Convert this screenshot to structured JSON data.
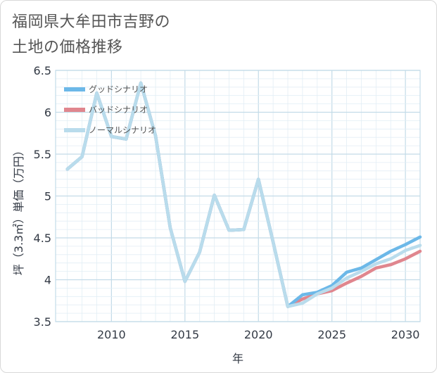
{
  "title": {
    "line1": "福岡県大牟田市吉野の",
    "line2": "土地の価格推移"
  },
  "chart_data": {
    "type": "line",
    "xlabel": "年",
    "ylabel": "坪（3.3㎡）単価（万円）",
    "xlim": [
      2006.2,
      2031
    ],
    "ylim": [
      3.5,
      6.5
    ],
    "x_ticks": [
      2010,
      2015,
      2020,
      2025,
      2030
    ],
    "y_ticks": [
      3.5,
      4,
      4.5,
      5,
      5.5,
      6,
      6.5
    ],
    "x_tick_labels": [
      "2010",
      "2015",
      "2020",
      "2025",
      "2030"
    ],
    "y_tick_labels": [
      "3.5",
      "4",
      "4.5",
      "5",
      "5.5",
      "6",
      "6.5"
    ],
    "grid": true,
    "legend_position": "top-left",
    "series": [
      {
        "name": "グッドシナリオ",
        "color": "#6cb8e8",
        "x": [
          2007,
          2008,
          2009,
          2010,
          2011,
          2012,
          2013,
          2014,
          2015,
          2016,
          2017,
          2018,
          2019,
          2020,
          2021,
          2022,
          2023,
          2024,
          2025,
          2026,
          2027,
          2028,
          2029,
          2030,
          2031
        ],
        "values": [
          5.32,
          5.47,
          6.23,
          5.71,
          5.68,
          6.35,
          5.72,
          4.62,
          3.98,
          4.33,
          5.01,
          4.59,
          4.6,
          5.2,
          4.45,
          3.68,
          3.82,
          3.85,
          3.93,
          4.09,
          4.14,
          4.24,
          4.34,
          4.42,
          4.51
        ]
      },
      {
        "name": "バッドシナリオ",
        "color": "#e0868e",
        "x": [
          2007,
          2008,
          2009,
          2010,
          2011,
          2012,
          2013,
          2014,
          2015,
          2016,
          2017,
          2018,
          2019,
          2020,
          2021,
          2022,
          2023,
          2024,
          2025,
          2026,
          2027,
          2028,
          2029,
          2030,
          2031
        ],
        "values": [
          5.32,
          5.47,
          6.23,
          5.71,
          5.68,
          6.35,
          5.72,
          4.62,
          3.98,
          4.33,
          5.01,
          4.59,
          4.6,
          5.2,
          4.45,
          3.68,
          3.77,
          3.83,
          3.87,
          3.96,
          4.04,
          4.14,
          4.18,
          4.25,
          4.34
        ]
      },
      {
        "name": "ノーマルシナリオ",
        "color": "#b9dcec",
        "x": [
          2007,
          2008,
          2009,
          2010,
          2011,
          2012,
          2013,
          2014,
          2015,
          2016,
          2017,
          2018,
          2019,
          2020,
          2021,
          2022,
          2023,
          2024,
          2025,
          2026,
          2027,
          2028,
          2029,
          2030,
          2031
        ],
        "values": [
          5.32,
          5.47,
          6.23,
          5.71,
          5.68,
          6.35,
          5.72,
          4.62,
          3.98,
          4.33,
          5.01,
          4.59,
          4.6,
          5.2,
          4.45,
          3.68,
          3.72,
          3.83,
          3.9,
          4.02,
          4.1,
          4.19,
          4.25,
          4.35,
          4.41
        ]
      }
    ]
  }
}
